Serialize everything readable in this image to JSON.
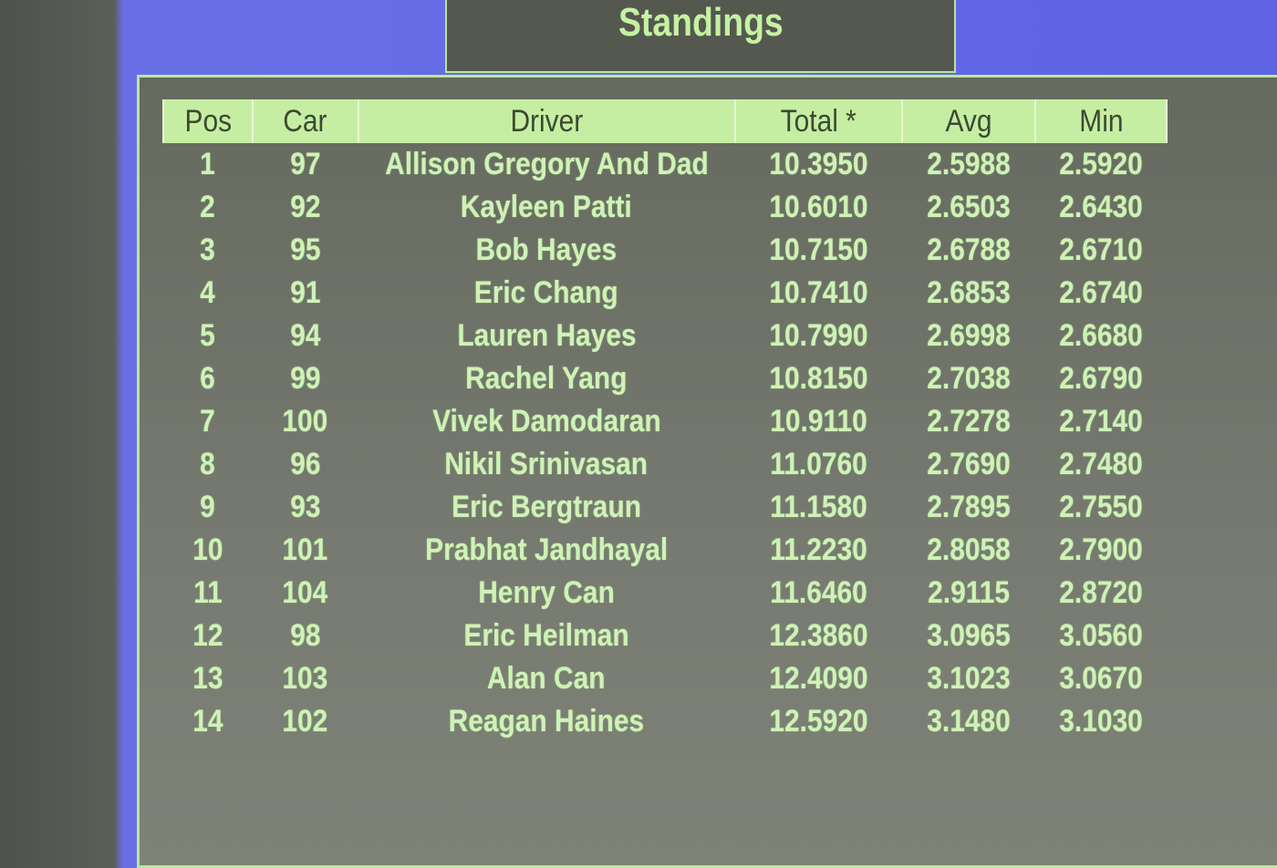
{
  "title": "Standings",
  "colors": {
    "background_blue": "#6060e0",
    "header_green": "#c6eea2",
    "text_green": "#cff2b6",
    "panel_gray": "#6d7066"
  },
  "table": {
    "columns": [
      "Pos",
      "Car",
      "Driver",
      "Total *",
      "Avg",
      "Min"
    ],
    "rows": [
      [
        "1",
        "97",
        "Allison Gregory And Dad",
        "10.3950",
        "2.5988",
        "2.5920"
      ],
      [
        "2",
        "92",
        "Kayleen Patti",
        "10.6010",
        "2.6503",
        "2.6430"
      ],
      [
        "3",
        "95",
        "Bob Hayes",
        "10.7150",
        "2.6788",
        "2.6710"
      ],
      [
        "4",
        "91",
        "Eric Chang",
        "10.7410",
        "2.6853",
        "2.6740"
      ],
      [
        "5",
        "94",
        "Lauren Hayes",
        "10.7990",
        "2.6998",
        "2.6680"
      ],
      [
        "6",
        "99",
        "Rachel Yang",
        "10.8150",
        "2.7038",
        "2.6790"
      ],
      [
        "7",
        "100",
        "Vivek Damodaran",
        "10.9110",
        "2.7278",
        "2.7140"
      ],
      [
        "8",
        "96",
        "Nikil Srinivasan",
        "11.0760",
        "2.7690",
        "2.7480"
      ],
      [
        "9",
        "93",
        "Eric Bergtraun",
        "11.1580",
        "2.7895",
        "2.7550"
      ],
      [
        "10",
        "101",
        "Prabhat Jandhayal",
        "11.2230",
        "2.8058",
        "2.7900"
      ],
      [
        "11",
        "104",
        "Henry Can",
        "11.6460",
        "2.9115",
        "2.8720"
      ],
      [
        "12",
        "98",
        "Eric Heilman",
        "12.3860",
        "3.0965",
        "3.0560"
      ],
      [
        "13",
        "103",
        "Alan Can",
        "12.4090",
        "3.1023",
        "3.0670"
      ],
      [
        "14",
        "102",
        "Reagan Haines",
        "12.5920",
        "3.1480",
        "3.1030"
      ]
    ]
  }
}
